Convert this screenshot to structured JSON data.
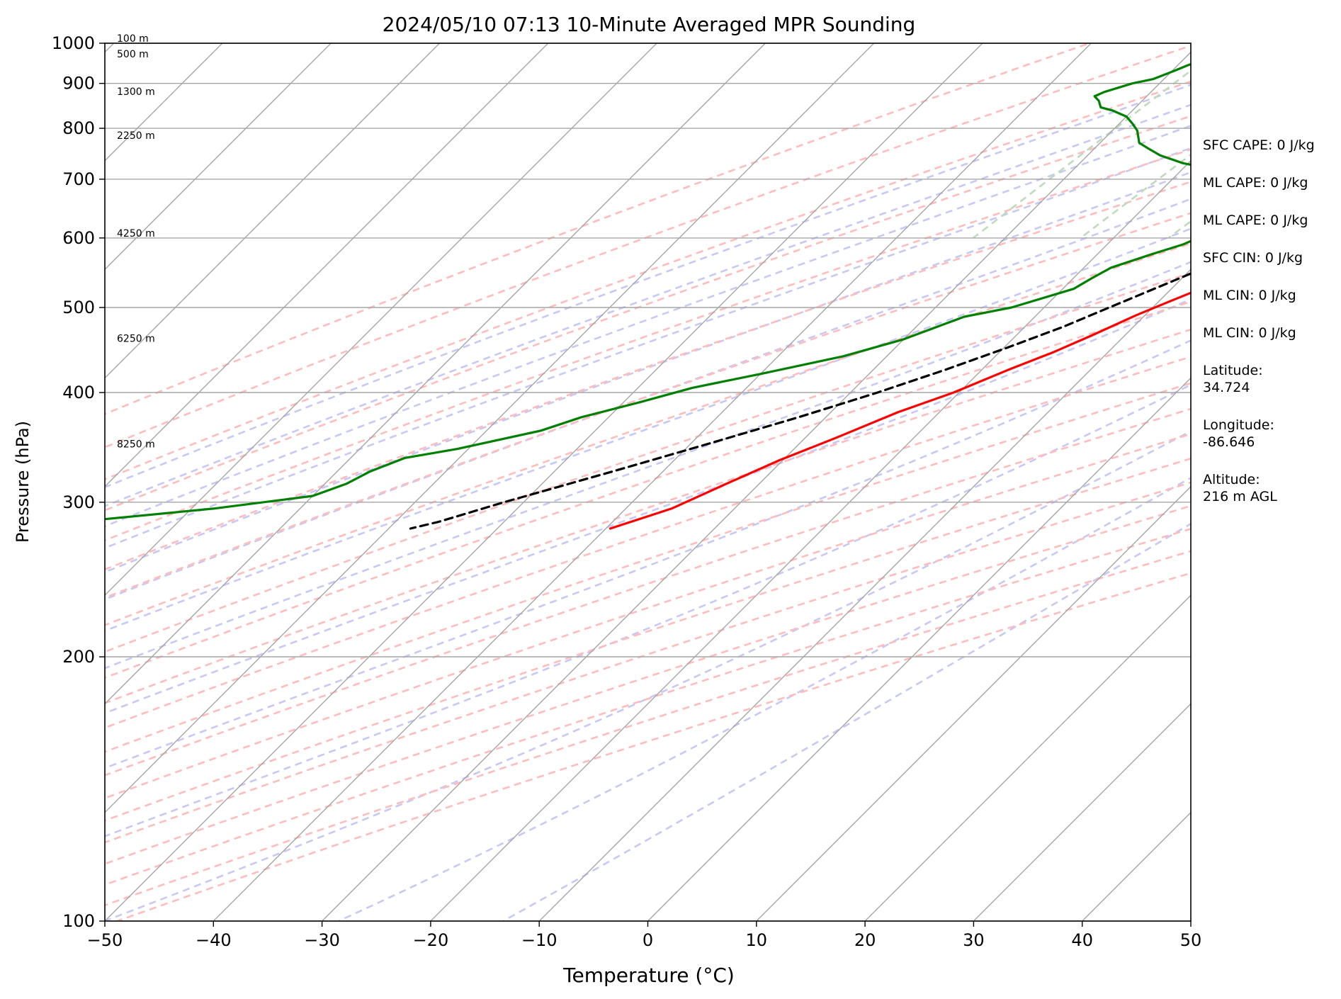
{
  "chart_data": {
    "type": "skew-t",
    "title": "2024/05/10 07:13 10-Minute Averaged MPR Sounding",
    "xlabel": "Temperature (°C)",
    "ylabel": "Pressure (hPa)",
    "xlim": [
      -50,
      50
    ],
    "ylim": [
      1000,
      100
    ],
    "y_log": true,
    "x_ticks": [
      -50,
      -40,
      -30,
      -20,
      -10,
      0,
      10,
      20,
      30,
      40,
      50
    ],
    "x_tick_labels": [
      "−50",
      "−40",
      "−30",
      "−20",
      "−10",
      "0",
      "10",
      "20",
      "30",
      "40",
      "50"
    ],
    "y_ticks": [
      1000,
      900,
      800,
      700,
      600,
      500,
      400,
      300,
      200,
      100
    ],
    "y_tick_labels": [
      "1000",
      "900",
      "800",
      "700",
      "600",
      "500",
      "400",
      "300",
      "200",
      "100"
    ],
    "height_labels": [
      {
        "pressure": 1000,
        "text": "100 m"
      },
      {
        "pressure": 960,
        "text": "500 m"
      },
      {
        "pressure": 870,
        "text": "1300 m"
      },
      {
        "pressure": 775,
        "text": "2250 m"
      },
      {
        "pressure": 600,
        "text": "4250 m"
      },
      {
        "pressure": 455,
        "text": "6250 m"
      },
      {
        "pressure": 345,
        "text": "8250 m"
      }
    ],
    "series": [
      {
        "role": "temperature",
        "color": "#ff0000",
        "points": [
          [
            16.7,
            990
          ],
          [
            17.5,
            975
          ],
          [
            18.5,
            960
          ],
          [
            19.5,
            945
          ],
          [
            20.8,
            925
          ],
          [
            21.3,
            912
          ],
          [
            20.8,
            900
          ],
          [
            20.2,
            888
          ],
          [
            19.2,
            875
          ],
          [
            18.0,
            860
          ],
          [
            16.3,
            840
          ],
          [
            14.9,
            820
          ],
          [
            14.0,
            800
          ],
          [
            13.2,
            780
          ],
          [
            12.0,
            760
          ],
          [
            10.7,
            740
          ],
          [
            9.0,
            720
          ],
          [
            6.8,
            700
          ],
          [
            5.5,
            680
          ],
          [
            3.3,
            650
          ],
          [
            1.3,
            620
          ],
          [
            -1.0,
            600
          ],
          [
            -2.8,
            570
          ],
          [
            -4.8,
            550
          ],
          [
            -6.8,
            530
          ],
          [
            -8.8,
            510
          ],
          [
            -10.8,
            490
          ],
          [
            -13.0,
            465
          ],
          [
            -15.0,
            445
          ],
          [
            -17.5,
            425
          ],
          [
            -20.5,
            400
          ],
          [
            -23.8,
            380
          ],
          [
            -27.2,
            355
          ],
          [
            -30.3,
            335
          ],
          [
            -33.0,
            315
          ],
          [
            -35.8,
            295
          ],
          [
            -39.6,
            280
          ]
        ]
      },
      {
        "role": "dewpoint",
        "color": "#008000",
        "points": [
          [
            -16.0,
            985
          ],
          [
            -19.0,
            980
          ],
          [
            -23.0,
            978
          ],
          [
            -26.5,
            968
          ],
          [
            -28.0,
            955
          ],
          [
            -29.0,
            945
          ],
          [
            -29.8,
            930
          ],
          [
            -31.0,
            910
          ],
          [
            -32.5,
            900
          ],
          [
            -34.3,
            880
          ],
          [
            -34.8,
            870
          ],
          [
            -34.0,
            860
          ],
          [
            -33.2,
            845
          ],
          [
            -31.8,
            838
          ],
          [
            -30.0,
            825
          ],
          [
            -28.8,
            810
          ],
          [
            -27.7,
            795
          ],
          [
            -26.4,
            770
          ],
          [
            -25.2,
            760
          ],
          [
            -23.3,
            745
          ],
          [
            -20.5,
            730
          ],
          [
            -16.0,
            715
          ],
          [
            -12.5,
            700
          ],
          [
            -10.0,
            688
          ],
          [
            -10.2,
            670
          ],
          [
            -10.8,
            655
          ],
          [
            -11.8,
            640
          ],
          [
            -11.7,
            625
          ],
          [
            -11.5,
            610
          ],
          [
            -13.0,
            590
          ],
          [
            -15.0,
            575
          ],
          [
            -17.5,
            555
          ],
          [
            -18.3,
            540
          ],
          [
            -19.0,
            525
          ],
          [
            -23.0,
            500
          ],
          [
            -26.5,
            488
          ],
          [
            -30.0,
            460
          ],
          [
            -34.0,
            440
          ],
          [
            -40.0,
            420
          ],
          [
            -45.0,
            405
          ],
          [
            -48.5,
            390
          ],
          [
            -52.5,
            375
          ],
          [
            -55.0,
            362
          ],
          [
            -61.0,
            345
          ],
          [
            -65.0,
            337
          ],
          [
            -67.0,
            325
          ],
          [
            -68.0,
            315
          ],
          [
            -70.0,
            305
          ],
          [
            -78.0,
            295
          ],
          [
            -87.0,
            287
          ],
          [
            -93.0,
            278
          ]
        ]
      },
      {
        "role": "parcel",
        "color": "#000000",
        "dashed": true,
        "points": [
          [
            16.7,
            990
          ],
          [
            15.5,
            975
          ],
          [
            14.0,
            955
          ],
          [
            13.0,
            940
          ],
          [
            11.2,
            900
          ],
          [
            9.0,
            850
          ],
          [
            6.8,
            800
          ],
          [
            4.2,
            750
          ],
          [
            1.4,
            700
          ],
          [
            -1.7,
            650
          ],
          [
            -5.2,
            600
          ],
          [
            -9.3,
            550
          ],
          [
            -14.0,
            500
          ],
          [
            -16.5,
            475
          ],
          [
            -19.7,
            450
          ],
          [
            -23.3,
            425
          ],
          [
            -27.5,
            400
          ],
          [
            -32.5,
            375
          ],
          [
            -38.3,
            350
          ],
          [
            -44.7,
            325
          ],
          [
            -51.8,
            300
          ],
          [
            -56.0,
            285
          ],
          [
            -58.0,
            280
          ]
        ]
      }
    ],
    "info_panel": [
      "SFC CAPE: 0 J/kg",
      "ML CAPE: 0 J/kg",
      "ML CAPE: 0 J/kg",
      "SFC CIN: 0 J/kg",
      "ML CIN: 0 J/kg",
      "ML CIN: 0 J/kg",
      "Latitude:\n34.724",
      "Longitude:\n-86.646",
      "Altitude:\n216 m AGL"
    ],
    "colors": {
      "isotherm": "#a6a6a6",
      "isobar": "#a6a6a6",
      "dry_adiabat": "#ffbcbc",
      "moist_adiabat": "#c8c8f6",
      "mixing_ratio": "#bcdcbc"
    },
    "background_lines": {
      "isotherms_C": [
        -130,
        -120,
        -110,
        -100,
        -90,
        -80,
        -70,
        -60,
        -50,
        -40,
        -30,
        -20,
        -10,
        0,
        10,
        20,
        30,
        40,
        50
      ],
      "dry_adiabats_theta_K": [
        233,
        243,
        253,
        263,
        273,
        283,
        293,
        303,
        313,
        323,
        333,
        343,
        353,
        363,
        373,
        383,
        393,
        403,
        413,
        423,
        433
      ],
      "moist_adiabats_start_C": [
        -20,
        -15,
        -10,
        -5,
        0,
        5,
        10,
        15,
        20,
        25,
        30,
        35,
        40,
        45
      ],
      "mixing_ratios_gkg": [
        0.4,
        1,
        2,
        4,
        7,
        10,
        16,
        24,
        32
      ]
    }
  }
}
